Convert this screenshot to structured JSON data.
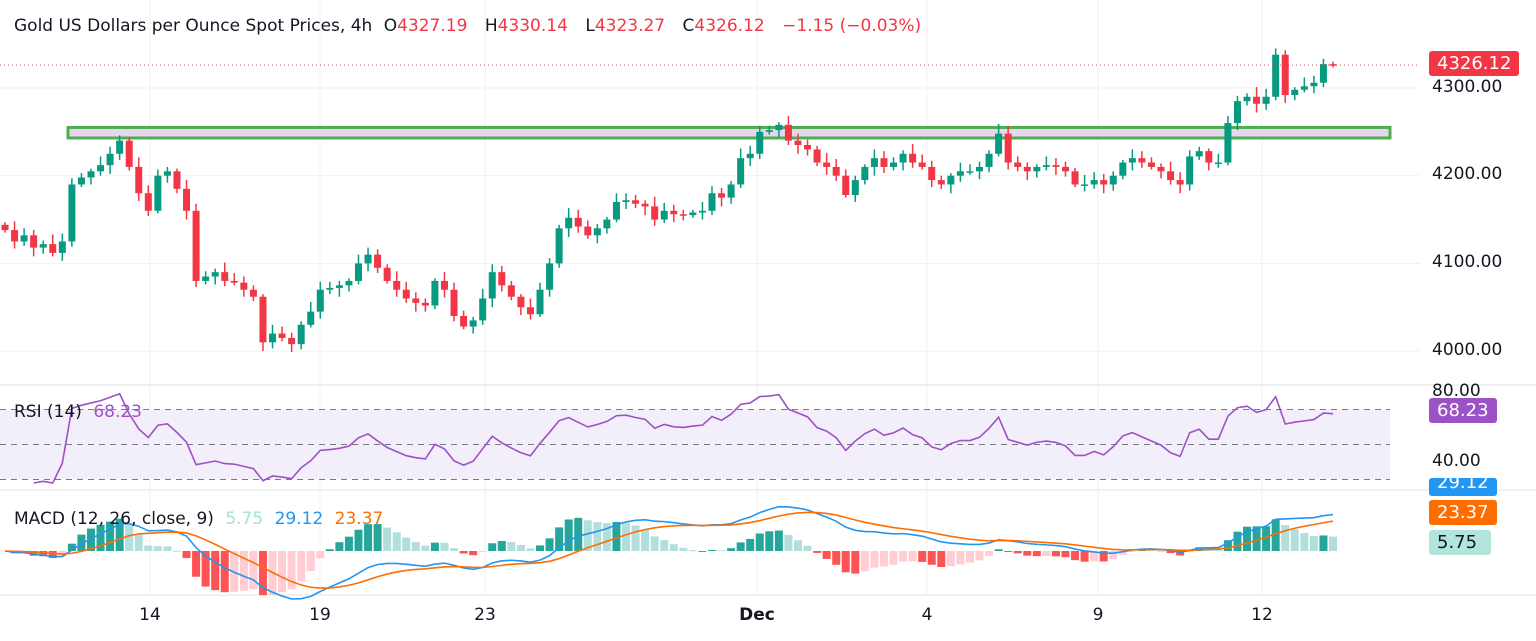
{
  "header": {
    "title": "Gold US Dollars per Ounce Spot Prices, 4h",
    "o_label": "O",
    "o": "4327.19",
    "h_label": "H",
    "h": "4330.14",
    "l_label": "L",
    "l": "4323.27",
    "c_label": "C",
    "c": "4326.12",
    "change": "−1.15 (−0.03%)"
  },
  "colors": {
    "up": "#089981",
    "down": "#f23645",
    "rsi": "#9c52c6",
    "macd": "#2196f3",
    "signal": "#ff6d00",
    "hist_up": "#26a69a",
    "hist_up_light": "#b2dfdb",
    "hist_down": "#ff5252",
    "hist_down_light": "#ffcdd2",
    "zone_border": "#4caf50",
    "zone_fill": "#e8d5ee"
  },
  "price_axis": {
    "labels": [
      "4300.00",
      "4200.00",
      "4100.00",
      "4000.00"
    ],
    "values": [
      4300,
      4200,
      4100,
      4000
    ],
    "last_price": "4326.12"
  },
  "rsi": {
    "label": "RSI (14)",
    "value": "68.23",
    "axis_labels": [
      "80.00",
      "40.00"
    ],
    "levels": [
      70,
      50,
      30
    ]
  },
  "macd": {
    "label": "MACD (12, 26, close, 9)",
    "hist": "5.75",
    "macd": "29.12",
    "signal": "23.37"
  },
  "x_axis": {
    "labels": [
      "14",
      "19",
      "23",
      "Dec",
      "4",
      "9",
      "12"
    ]
  },
  "chart_data": {
    "type": "candlestick",
    "title": "Gold US Dollars per Ounce Spot Prices, 4h",
    "ylim": [
      3960,
      4350
    ],
    "zone": [
      4243,
      4255
    ],
    "close": [
      4138,
      4125,
      4132,
      4118,
      4122,
      4112,
      4125,
      4190,
      4198,
      4205,
      4212,
      4225,
      4240,
      4210,
      4180,
      4160,
      4200,
      4205,
      4185,
      4160,
      4080,
      4085,
      4090,
      4080,
      4078,
      4070,
      4062,
      4010,
      4020,
      4015,
      4008,
      4030,
      4045,
      4070,
      4072,
      4075,
      4080,
      4100,
      4110,
      4095,
      4080,
      4070,
      4060,
      4055,
      4052,
      4080,
      4070,
      4040,
      4028,
      4035,
      4060,
      4090,
      4075,
      4062,
      4050,
      4042,
      4070,
      4100,
      4140,
      4152,
      4142,
      4132,
      4140,
      4150,
      4170,
      4172,
      4168,
      4165,
      4150,
      4160,
      4156,
      4155,
      4158,
      4160,
      4180,
      4175,
      4190,
      4220,
      4225,
      4250,
      4252,
      4258,
      4240,
      4235,
      4230,
      4215,
      4210,
      4200,
      4178,
      4195,
      4210,
      4220,
      4210,
      4215,
      4225,
      4215,
      4210,
      4195,
      4190,
      4200,
      4205,
      4205,
      4210,
      4225,
      4248,
      4215,
      4210,
      4205,
      4210,
      4212,
      4210,
      4205,
      4190,
      4190,
      4195,
      4190,
      4200,
      4215,
      4220,
      4215,
      4210,
      4205,
      4195,
      4190,
      4222,
      4228,
      4215,
      4215,
      4260,
      4285,
      4290,
      4282,
      4290,
      4338,
      4292,
      4298,
      4302,
      4306,
      4327.19,
      4326.12
    ],
    "last_candle": {
      "open": 4327.19,
      "high": 4330.14,
      "low": 4323.27,
      "close": 4326.12
    }
  }
}
